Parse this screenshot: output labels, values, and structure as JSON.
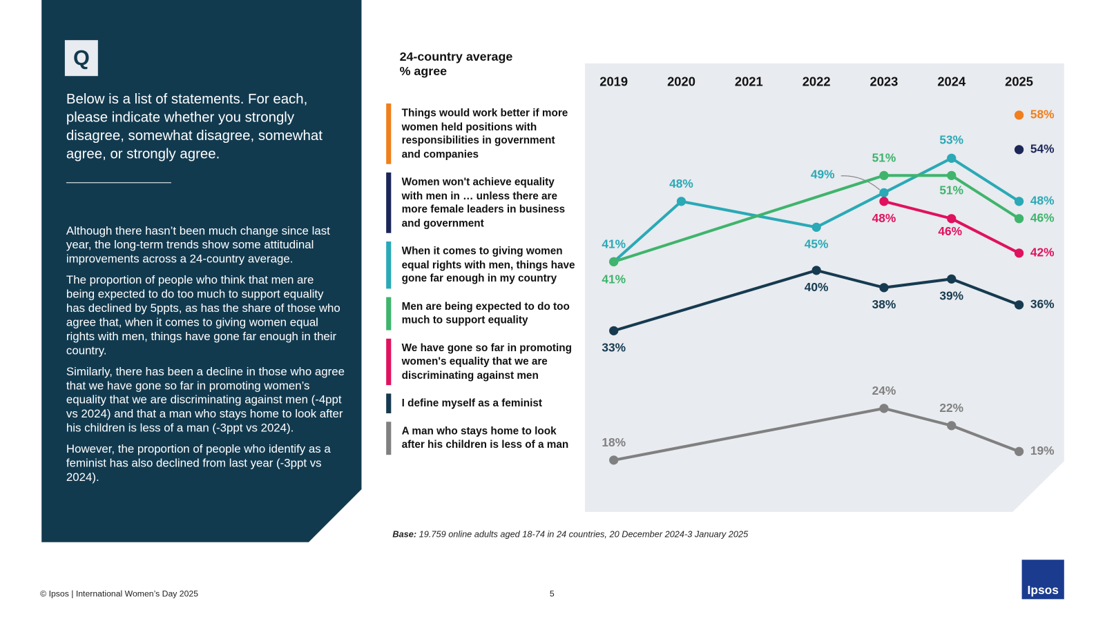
{
  "panel": {
    "icon": "Q",
    "question": "Below is a list of statements. For each, please indicate whether you strongly disagree, somewhat disagree, somewhat agree, or strongly agree.",
    "paragraphs": [
      "Although there hasn’t been much change since last year, the long-term trends show some attitudinal improvements across a 24-country average.",
      "The proportion of people who think that men are being expected to do too much to support equality has declined by 5ppts, as has the share of those who agree that, when it comes to giving women equal rights with men, things have gone far enough in their country.",
      "Similarly, there has been a decline in those who agree that we have gone so far in promoting women’s equality that we are discriminating against men (-4ppt vs 2024) and that a man who stays home to look after his children is less of a man (-3ppt vs 2024).",
      "However, the proportion of people who identify as a feminist has also declined from last year (-3ppt vs 2024)."
    ]
  },
  "chart_data": {
    "type": "line",
    "title": "24-country average",
    "subtitle": "% agree",
    "xlim": [
      2018.5,
      2025.5
    ],
    "xticks": [
      2019,
      2020,
      2021,
      2022,
      2023,
      2024,
      2025
    ],
    "ylim": [
      12,
      64
    ],
    "series": [
      {
        "name": "Things would work better if more women held positions with responsibilities in government and companies",
        "color": "#f07f1d",
        "x": [
          2025
        ],
        "values": [
          58
        ],
        "value_labels": [
          "58%"
        ]
      },
      {
        "name": "Women won't achieve equality with men in … unless there are more female leaders in business and government",
        "color": "#1c2657",
        "x": [
          2025
        ],
        "values": [
          54
        ],
        "value_labels": [
          "54%"
        ]
      },
      {
        "name": "When it comes to giving women equal rights with men, things have gone far enough in my country",
        "color": "#2aa9b6",
        "x": [
          2019,
          2020,
          2022,
          2023,
          2024,
          2025
        ],
        "values": [
          41,
          48,
          45,
          49,
          53,
          48
        ],
        "value_labels": [
          "41%",
          "48%",
          "45%",
          "49%",
          "53%",
          "48%"
        ]
      },
      {
        "name": "Men are being expected to do too much to support equality",
        "color": "#3fb46d",
        "x": [
          2019,
          2023,
          2024,
          2025
        ],
        "values": [
          41,
          51,
          51,
          46
        ],
        "value_labels": [
          "41%",
          "51%",
          "51%",
          "46%"
        ]
      },
      {
        "name": "We have gone so far in promoting women's equality that we are discriminating against men",
        "color": "#e0115f",
        "x": [
          2023,
          2024,
          2025
        ],
        "values": [
          48,
          46,
          42
        ],
        "value_labels": [
          "48%",
          "46%",
          "42%"
        ]
      },
      {
        "name": "I define myself as a feminist",
        "color": "#163a50",
        "x": [
          2019,
          2022,
          2023,
          2024,
          2025
        ],
        "values": [
          33,
          40,
          38,
          39,
          36
        ],
        "value_labels": [
          "33%",
          "40%",
          "38%",
          "39%",
          "36%"
        ]
      },
      {
        "name": "A man who stays home to look after his children is less of a man",
        "color": "#808080",
        "x": [
          2019,
          2023,
          2024,
          2025
        ],
        "values": [
          18,
          24,
          22,
          19
        ],
        "value_labels": [
          "18%",
          "24%",
          "22%",
          "19%"
        ]
      }
    ]
  },
  "base": {
    "label": "Base:",
    "text": "19.759 online adults aged 18-74 in 24 countries, 20 December 2024-3 January 2025"
  },
  "footer": {
    "copyright": "© Ipsos | International Women’s Day 2025",
    "page": 5,
    "logo": "Ipsos"
  }
}
